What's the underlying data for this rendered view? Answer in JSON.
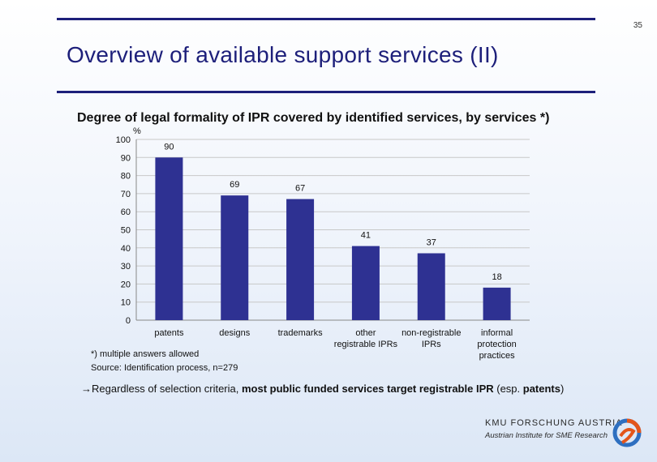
{
  "page_number": "35",
  "title": "Overview of available support services (II)",
  "chart_data": {
    "type": "bar",
    "title": "Degree of legal formality of IPR covered by identified services, by services *)",
    "ylabel": "%",
    "xlabel": "",
    "ylim": [
      0,
      100
    ],
    "yticks": [
      0,
      10,
      20,
      30,
      40,
      50,
      60,
      70,
      80,
      90,
      100
    ],
    "grid": true,
    "categories": [
      [
        "patents"
      ],
      [
        "designs"
      ],
      [
        "trademarks"
      ],
      [
        "other",
        "registrable IPRs"
      ],
      [
        "non-registrable",
        "IPRs"
      ],
      [
        "informal",
        "protection",
        "practices"
      ]
    ],
    "values": [
      90,
      69,
      67,
      41,
      37,
      18
    ],
    "bar_color": "#2e3192"
  },
  "notes": {
    "footnote": "*) multiple answers allowed",
    "source": "Source: Identification process, n=279"
  },
  "conclusion": {
    "arrow": "→",
    "part1": "Regardless of selection criteria, ",
    "part2_bold": "most public funded services target registrable IPR",
    "part3": " (esp. ",
    "part4_bold": "patents",
    "part5": ")"
  },
  "logo": {
    "line1": "KMU FORSCHUNG AUSTRIA",
    "line2": "Austrian Institute for SME Research"
  },
  "colors": {
    "accent": "#1d1f7a",
    "bar": "#2e3192"
  }
}
